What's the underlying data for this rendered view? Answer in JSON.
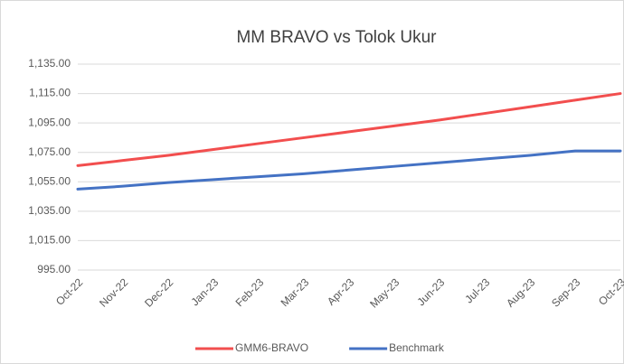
{
  "chart_data": {
    "type": "line",
    "title": "MM BRAVO vs Tolok Ukur",
    "categories": [
      "Oct-22",
      "Nov-22",
      "Dec-22",
      "Jan-23",
      "Feb-23",
      "Mar-23",
      "Apr-23",
      "May-23",
      "Jun-23",
      "Jul-23",
      "Aug-23",
      "Sep-23",
      "Oct-23"
    ],
    "series": [
      {
        "name": "GMM6-BRAVO",
        "color": "#f24e4e",
        "values": [
          1066,
          1069.5,
          1073,
          1077,
          1081,
          1085,
          1089,
          1093,
          1097,
          1101.5,
          1106,
          1110.5,
          1115
        ]
      },
      {
        "name": "Benchmark",
        "color": "#4472c4",
        "values": [
          1050,
          1052,
          1054.5,
          1056.5,
          1058.5,
          1060.5,
          1063,
          1065.5,
          1068,
          1070.5,
          1073,
          1076,
          1076
        ]
      }
    ],
    "ylim": [
      995,
      1135
    ],
    "yticks": [
      {
        "value": 995,
        "label": "995.00"
      },
      {
        "value": 1015,
        "label": "1,015.00"
      },
      {
        "value": 1035,
        "label": "1,035.00"
      },
      {
        "value": 1055,
        "label": "1,055.00"
      },
      {
        "value": 1075,
        "label": "1,075.00"
      },
      {
        "value": 1095,
        "label": "1,095.00"
      },
      {
        "value": 1115,
        "label": "1,115.00"
      },
      {
        "value": 1135,
        "label": "1,135.00"
      }
    ],
    "grid": true,
    "legend": "bottom"
  }
}
